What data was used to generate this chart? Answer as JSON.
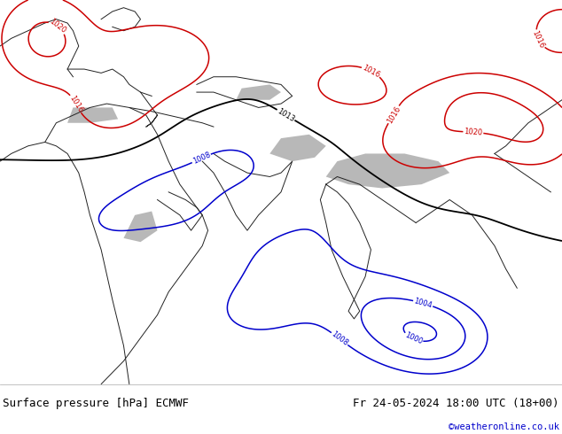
{
  "title_left": "Surface pressure [hPa] ECMWF",
  "title_right": "Fr 24-05-2024 18:00 UTC (18+00)",
  "watermark": "©weatheronline.co.uk",
  "bg_color": "#c8dfa0",
  "land_color": "#c8dfa0",
  "sea_color": "#ffffff",
  "gray_color": "#b8b8b8",
  "label_color_red": "#cc0000",
  "label_color_blue": "#0000cc",
  "label_color_black": "#000000",
  "title_bg": "#ffffff",
  "title_text_color": "#000000",
  "watermark_color": "#0000cc",
  "fig_width": 6.34,
  "fig_height": 4.9,
  "title_fontsize": 9,
  "watermark_fontsize": 7.5,
  "coast_linewidth": 0.7,
  "contour_linewidth": 1.1
}
